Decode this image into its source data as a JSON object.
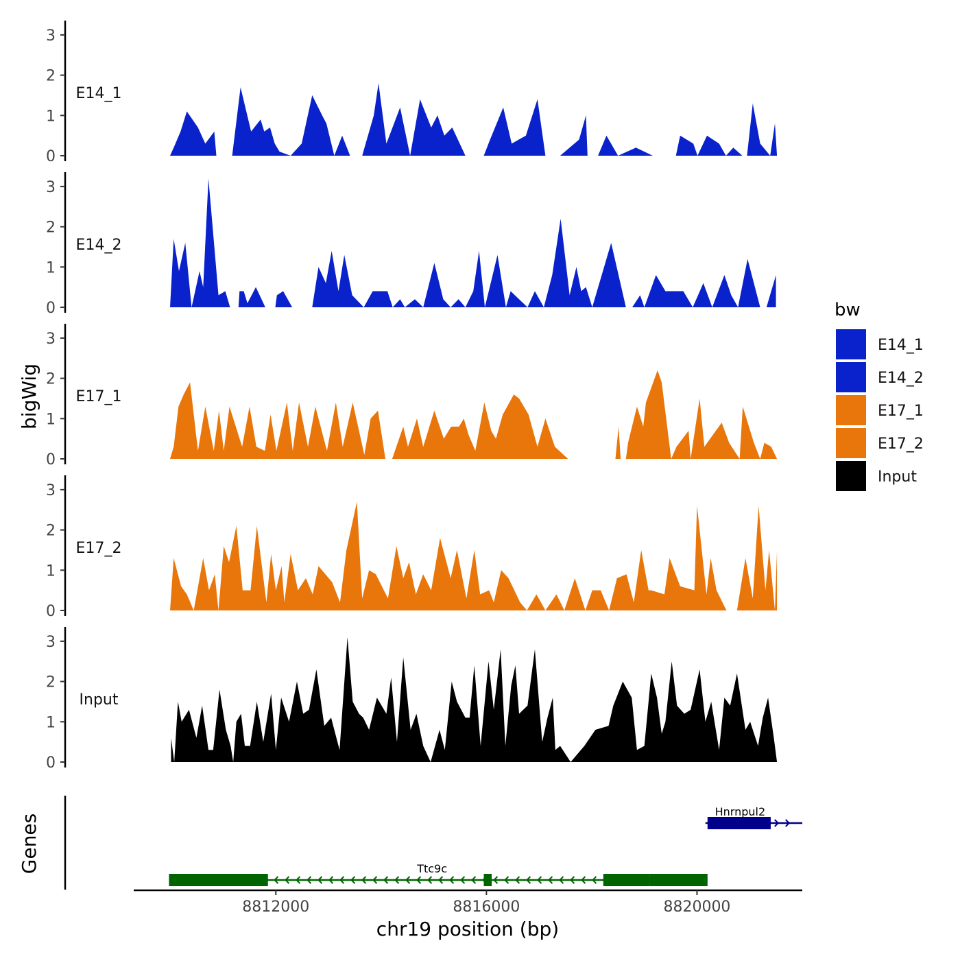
{
  "chart_data": {
    "type": "area",
    "title": "",
    "xlabel": "chr19 position (bp)",
    "ylabel": "bigWig",
    "genes_label": "Genes",
    "xlim": [
      8809300,
      8822000
    ],
    "xticks": [
      8812000,
      8816000,
      8820000
    ],
    "xtick_labels": [
      "8812000",
      "8816000",
      "8820000"
    ],
    "ylim": [
      0,
      3.3
    ],
    "yticks": [
      0,
      1,
      2,
      3
    ],
    "ytick_labels": [
      "0",
      "1",
      "2",
      "3"
    ],
    "legend": {
      "title": "bw",
      "position": "right",
      "entries": [
        {
          "label": "E14_1",
          "color": "#0a22cc"
        },
        {
          "label": "E14_2",
          "color": "#0a22cc"
        },
        {
          "label": "E17_1",
          "color": "#e8760a"
        },
        {
          "label": "E17_2",
          "color": "#e8760a"
        },
        {
          "label": "Input",
          "color": "#000000"
        }
      ]
    },
    "series": [
      {
        "name": "E14_1",
        "color": "#0a22cc",
        "x": [
          8809990,
          8810060,
          8810190,
          8810310,
          8810520,
          8810660,
          8810830,
          8810870,
          8811170,
          8811330,
          8811530,
          8811710,
          8811780,
          8811890,
          8811980,
          8812070,
          8812280,
          8812490,
          8812690,
          8812880,
          8812960,
          8813110,
          8813260,
          8813410,
          8813640,
          8813860,
          8813950,
          8814100,
          8814360,
          8814550,
          8814740,
          8814950,
          8815070,
          8815200,
          8815350,
          8815600,
          8815950,
          8816070,
          8816320,
          8816480,
          8816750,
          8816970,
          8817120,
          8817400,
          8817760,
          8817890,
          8817920,
          8818120,
          8818280,
          8818500,
          8818840,
          8819160,
          8819600,
          8819680,
          8819930,
          8820010,
          8820190,
          8820420,
          8820550,
          8820690,
          8820860,
          8820950,
          8821060,
          8821200,
          8821390,
          8821480,
          8821520
        ],
        "y": [
          0.0,
          0.2,
          0.6,
          1.1,
          0.7,
          0.3,
          0.6,
          0.0,
          0.0,
          1.7,
          0.6,
          0.9,
          0.6,
          0.7,
          0.3,
          0.1,
          0.0,
          0.3,
          1.5,
          1.0,
          0.8,
          0.0,
          0.5,
          0.0,
          0.0,
          1.0,
          1.8,
          0.3,
          1.2,
          0.0,
          1.4,
          0.7,
          1.0,
          0.5,
          0.7,
          0.0,
          0.0,
          0.4,
          1.2,
          0.3,
          0.5,
          1.4,
          0.0,
          0.0,
          0.4,
          1.0,
          0.0,
          0.0,
          0.5,
          0.0,
          0.2,
          0.0,
          0.0,
          0.5,
          0.3,
          0.0,
          0.5,
          0.3,
          0.0,
          0.2,
          0.0,
          0.0,
          1.3,
          0.3,
          0.0,
          0.8,
          0.0
        ]
      },
      {
        "name": "E14_2",
        "color": "#0a22cc",
        "x": [
          8809990,
          8810060,
          8810160,
          8810280,
          8810400,
          8810550,
          8810620,
          8810720,
          8810910,
          8811040,
          8811130,
          8811290,
          8811310,
          8811390,
          8811460,
          8811620,
          8811800,
          8811990,
          8812020,
          8812140,
          8812310,
          8812690,
          8812810,
          8812950,
          8813060,
          8813190,
          8813300,
          8813450,
          8813670,
          8813840,
          8814120,
          8814220,
          8814360,
          8814450,
          8814640,
          8814800,
          8815010,
          8815180,
          8815320,
          8815470,
          8815600,
          8815750,
          8815860,
          8815970,
          8816210,
          8816370,
          8816460,
          8816780,
          8816920,
          8817090,
          8817250,
          8817410,
          8817580,
          8817710,
          8817800,
          8817890,
          8818010,
          8818370,
          8818650,
          8818770,
          8818920,
          8819000,
          8819220,
          8819400,
          8819530,
          8819740,
          8819920,
          8820120,
          8820290,
          8820520,
          8820650,
          8820780,
          8820960,
          8821200,
          8821320,
          8821500
        ],
        "y": [
          0.0,
          1.7,
          0.9,
          1.6,
          0.0,
          0.9,
          0.5,
          3.2,
          0.3,
          0.4,
          0.0,
          0.0,
          0.4,
          0.4,
          0.1,
          0.5,
          0.0,
          0.0,
          0.3,
          0.4,
          0.0,
          0.0,
          1.0,
          0.6,
          1.4,
          0.4,
          1.3,
          0.3,
          0.0,
          0.4,
          0.4,
          0.0,
          0.2,
          0.0,
          0.2,
          0.0,
          1.1,
          0.2,
          0.0,
          0.2,
          0.0,
          0.4,
          1.4,
          0.0,
          1.3,
          0.0,
          0.4,
          0.0,
          0.4,
          0.0,
          0.8,
          2.2,
          0.3,
          1.0,
          0.4,
          0.5,
          0.0,
          1.6,
          0.0,
          0.0,
          0.3,
          0.0,
          0.8,
          0.4,
          0.4,
          0.4,
          0.0,
          0.6,
          0.0,
          0.8,
          0.3,
          0.0,
          1.2,
          0.0,
          0.0,
          0.8
        ],
        "y_note": ""
      },
      {
        "name": "E17_1",
        "color": "#e8760a",
        "x": [
          8809990,
          8810060,
          8810150,
          8810250,
          8810370,
          8810520,
          8810660,
          8810820,
          8810920,
          8811010,
          8811120,
          8811360,
          8811500,
          8811630,
          8811790,
          8811900,
          8812010,
          8812210,
          8812320,
          8812440,
          8812610,
          8812750,
          8812970,
          8813140,
          8813270,
          8813460,
          8813680,
          8813800,
          8813940,
          8814080,
          8814210,
          8814420,
          8814510,
          8814680,
          8814800,
          8815010,
          8815190,
          8815330,
          8815480,
          8815570,
          8815660,
          8815790,
          8815960,
          8816090,
          8816180,
          8816310,
          8816520,
          8816620,
          8816800,
          8816970,
          8817120,
          8817300,
          8817550,
          8818450,
          8818510,
          8818550,
          8818650,
          8818690,
          8818860,
          8818980,
          8819030,
          8819250,
          8819330,
          8819510,
          8819610,
          8819840,
          8819880,
          8820050,
          8820140,
          8820250,
          8820470,
          8820610,
          8820810,
          8820870,
          8821080,
          8821200,
          8821280,
          8821410,
          8821520
        ],
        "y": [
          0.0,
          0.3,
          1.3,
          1.6,
          1.9,
          0.2,
          1.3,
          0.2,
          1.2,
          0.2,
          1.3,
          0.3,
          1.3,
          0.3,
          0.2,
          1.1,
          0.2,
          1.4,
          0.2,
          1.4,
          0.3,
          1.3,
          0.2,
          1.4,
          0.3,
          1.4,
          0.1,
          1.0,
          1.2,
          0.0,
          0.0,
          0.8,
          0.3,
          1.0,
          0.3,
          1.2,
          0.5,
          0.8,
          0.8,
          1.0,
          0.6,
          0.2,
          1.4,
          0.7,
          0.5,
          1.1,
          1.6,
          1.5,
          1.1,
          0.3,
          1.0,
          0.3,
          0.0,
          0.0,
          0.8,
          0.0,
          0.0,
          0.4,
          1.3,
          0.8,
          1.4,
          2.2,
          1.9,
          0.0,
          0.3,
          0.7,
          0.0,
          1.5,
          0.3,
          0.5,
          0.9,
          0.4,
          0.0,
          1.3,
          0.4,
          0.0,
          0.4,
          0.3,
          0.0
        ]
      },
      {
        "name": "E17_2",
        "color": "#e8760a",
        "x": [
          8809990,
          8810060,
          8810200,
          8810310,
          8810440,
          8810620,
          8810730,
          8810840,
          8810910,
          8811010,
          8811110,
          8811250,
          8811370,
          8811520,
          8811640,
          8811820,
          8811910,
          8812000,
          8812110,
          8812160,
          8812280,
          8812420,
          8812570,
          8812700,
          8812810,
          8813070,
          8813220,
          8813340,
          8813540,
          8813640,
          8813770,
          8813900,
          8814130,
          8814290,
          8814420,
          8814530,
          8814660,
          8814800,
          8814950,
          8815120,
          8815320,
          8815440,
          8815620,
          8815770,
          8815880,
          8816050,
          8816140,
          8816280,
          8816420,
          8816640,
          8816770,
          8816950,
          8817120,
          8817330,
          8817480,
          8817680,
          8817880,
          8818010,
          8818170,
          8818330,
          8818480,
          8818660,
          8818800,
          8818940,
          8819080,
          8819130,
          8819380,
          8819480,
          8819680,
          8819950,
          8820000,
          8820180,
          8820260,
          8820370,
          8820560,
          8820760,
          8820920,
          8821060,
          8821170,
          8821300,
          8821370,
          8821480,
          8821520
        ],
        "y": [
          0.0,
          1.3,
          0.6,
          0.4,
          0.0,
          1.3,
          0.5,
          0.9,
          0.0,
          1.6,
          1.2,
          2.1,
          0.5,
          0.5,
          2.1,
          0.2,
          1.4,
          0.5,
          1.1,
          0.2,
          1.4,
          0.5,
          0.8,
          0.4,
          1.1,
          0.7,
          0.2,
          1.5,
          2.7,
          0.3,
          1.0,
          0.9,
          0.3,
          1.6,
          0.8,
          1.2,
          0.4,
          0.9,
          0.5,
          1.8,
          0.8,
          1.5,
          0.3,
          1.5,
          0.4,
          0.5,
          0.2,
          1.0,
          0.8,
          0.2,
          0.0,
          0.4,
          0.0,
          0.4,
          0.0,
          0.8,
          0.0,
          0.5,
          0.5,
          0.0,
          0.8,
          0.9,
          0.2,
          1.5,
          0.5,
          0.5,
          0.4,
          1.3,
          0.6,
          0.5,
          2.6,
          0.4,
          1.3,
          0.5,
          0.0,
          0.0,
          1.3,
          0.3,
          2.6,
          0.5,
          1.5,
          0.0,
          1.5
        ]
      },
      {
        "name": "Input",
        "color": "#000000",
        "x": [
          8810010,
          8810070,
          8810140,
          8810210,
          8810350,
          8810490,
          8810600,
          8810720,
          8810810,
          8810930,
          8811050,
          8811140,
          8811190,
          8811250,
          8811340,
          8811410,
          8811510,
          8811640,
          8811760,
          8811910,
          8812000,
          8812100,
          8812250,
          8812400,
          8812520,
          8812630,
          8812770,
          8812920,
          8813050,
          8813210,
          8813360,
          8813460,
          8813580,
          8813660,
          8813770,
          8813920,
          8814100,
          8814190,
          8814300,
          8814420,
          8814560,
          8814670,
          8814800,
          8814940,
          8815110,
          8815210,
          8815340,
          8815440,
          8815600,
          8815680,
          8815770,
          8815890,
          8816040,
          8816140,
          8816270,
          8816360,
          8816470,
          8816550,
          8816620,
          8816780,
          8816920,
          8817060,
          8817160,
          8817260,
          8817310,
          8817400,
          8817600,
          8817860,
          8818070,
          8818320,
          8818410,
          8818590,
          8818760,
          8818860,
          8819000,
          8819130,
          8819240,
          8819330,
          8819400,
          8819520,
          8819620,
          8819760,
          8819880,
          8820050,
          8820160,
          8820270,
          8820420,
          8820520,
          8820630,
          8820760,
          8820920,
          8821010,
          8821160,
          8821250,
          8821350,
          8821460,
          8821520
        ],
        "y": [
          0.6,
          0.0,
          1.5,
          1.0,
          1.3,
          0.6,
          1.4,
          0.3,
          0.3,
          1.8,
          0.8,
          0.4,
          0.0,
          1.0,
          1.2,
          0.4,
          0.4,
          1.5,
          0.5,
          1.7,
          0.3,
          1.6,
          1.0,
          2.0,
          1.2,
          1.3,
          2.3,
          0.9,
          1.1,
          0.3,
          3.1,
          1.5,
          1.2,
          1.1,
          0.8,
          1.6,
          1.2,
          2.1,
          0.5,
          2.6,
          0.8,
          1.2,
          0.4,
          0.0,
          0.8,
          0.3,
          2.0,
          1.5,
          1.1,
          1.1,
          2.4,
          0.4,
          2.5,
          1.3,
          2.8,
          0.4,
          1.9,
          2.4,
          1.2,
          1.4,
          2.8,
          0.5,
          1.1,
          1.6,
          0.3,
          0.4,
          0.0,
          0.4,
          0.8,
          0.9,
          1.4,
          2.0,
          1.6,
          0.3,
          0.4,
          2.2,
          1.6,
          0.7,
          1.0,
          2.5,
          1.4,
          1.2,
          1.3,
          2.3,
          1.0,
          1.5,
          0.3,
          1.6,
          1.4,
          2.2,
          0.8,
          1.0,
          0.4,
          1.1,
          1.6,
          0.6,
          0.0
        ]
      }
    ],
    "genes": [
      {
        "name": "Ttc9c",
        "strand": "-",
        "color": "#006400",
        "start": 8809970,
        "end": 8820200,
        "exons": [
          [
            8809970,
            8811850
          ],
          [
            8815950,
            8816100
          ],
          [
            8818220,
            8819100
          ],
          [
            8819100,
            8820200
          ]
        ]
      },
      {
        "name": "Hnrnpul2",
        "strand": "+",
        "color": "#00008b",
        "start": 8820160,
        "end": 8822000,
        "exons": [
          [
            8820200,
            8821400
          ]
        ]
      }
    ]
  }
}
